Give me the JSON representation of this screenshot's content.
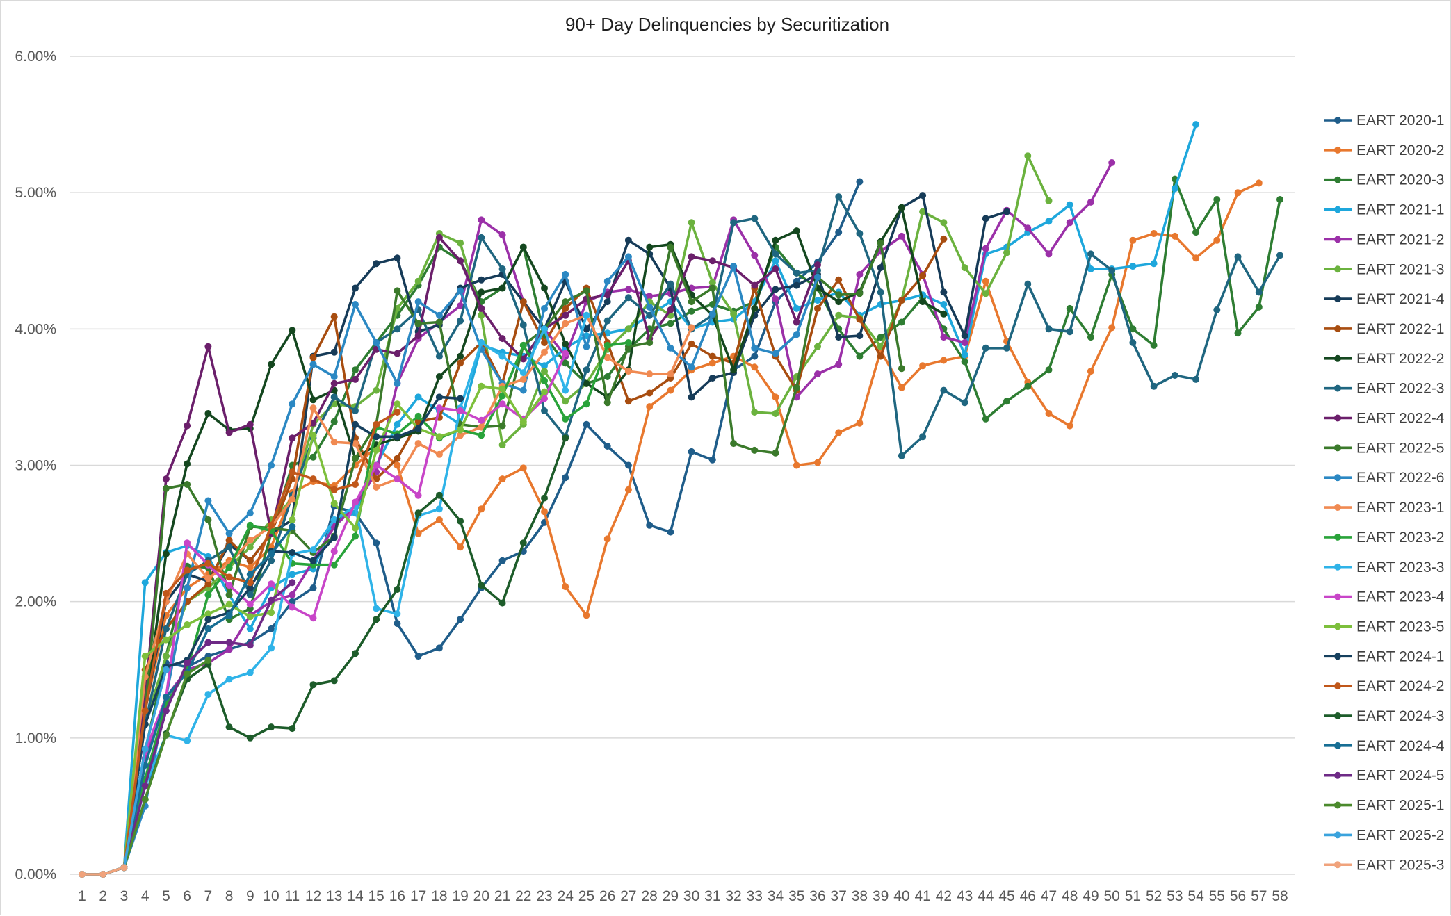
{
  "chart_data": {
    "type": "line",
    "title": "90+ Day Delinquencies by Securitization",
    "xlabel": "",
    "ylabel": "",
    "y_ticks": [
      "0.00%",
      "1.00%",
      "2.00%",
      "3.00%",
      "4.00%",
      "5.00%",
      "6.00%"
    ],
    "ylim": [
      0,
      6
    ],
    "xlim": [
      1,
      58
    ],
    "grid": "horizontal",
    "legend_position": "right",
    "series": [
      {
        "name": "EART 2020-1",
        "color": "#1f5d8a",
        "start": 1,
        "values": [
          0,
          0,
          0.05,
          1.1,
          1.55,
          1.52,
          1.6,
          1.65,
          1.7,
          1.8,
          2,
          2.1,
          2.7,
          2.65,
          2.43,
          1.84,
          1.6,
          1.66,
          1.87,
          2.1,
          2.3,
          2.37,
          2.58,
          2.91,
          3.3,
          3.14,
          3.0,
          2.56,
          2.51,
          3.1,
          3.04,
          3.7,
          3.8,
          4.2,
          4.35,
          4.49,
          4.71,
          5.08
        ]
      },
      {
        "name": "EART 2020-2",
        "color": "#e8782e",
        "start": 1,
        "values": [
          0,
          0,
          0.05,
          1.2,
          1.9,
          2.1,
          2.2,
          2.3,
          2.25,
          2.4,
          2.8,
          2.88,
          2.85,
          3.0,
          3.13,
          3.0,
          2.5,
          2.6,
          2.4,
          2.68,
          2.9,
          2.98,
          2.66,
          2.11,
          1.9,
          2.46,
          2.82,
          3.43,
          3.55,
          3.7,
          3.75,
          3.8,
          3.72,
          3.5,
          3.0,
          3.02,
          3.24,
          3.31,
          3.84,
          3.57,
          3.73,
          3.77,
          3.8,
          4.35,
          3.91,
          3.61,
          3.38,
          3.29,
          3.69,
          4.01,
          4.65,
          4.7,
          4.68,
          4.52,
          4.65,
          5.0,
          5.07
        ]
      },
      {
        "name": "EART 2020-3",
        "color": "#2e7d32",
        "start": 1,
        "values": [
          0,
          0,
          0.05,
          0.9,
          1.6,
          2.26,
          2.25,
          1.87,
          1.95,
          2.5,
          3.0,
          3.06,
          3.32,
          3.7,
          3.9,
          4.1,
          4.32,
          4.6,
          4.5,
          4.2,
          4.3,
          4.6,
          3.95,
          3.75,
          3.6,
          3.65,
          3.85,
          4.0,
          4.04,
          4.13,
          4.18,
          4.13,
          4.2,
          4.6,
          4.41,
          4.3,
          4.0,
          3.8,
          3.94,
          4.05,
          4.23,
          4.0,
          3.76,
          3.34,
          3.47,
          3.58,
          3.7,
          4.15,
          3.94,
          4.4,
          4.0,
          3.88,
          5.1,
          4.71,
          4.95,
          3.97,
          4.16,
          4.95
        ]
      },
      {
        "name": "EART 2021-1",
        "color": "#1ea7dc",
        "start": 1,
        "values": [
          0,
          0,
          0.05,
          2.14,
          2.36,
          2.41,
          2.33,
          2.05,
          1.8,
          2.1,
          2.2,
          2.24,
          2.6,
          2.65,
          3.0,
          3.3,
          3.5,
          3.4,
          3.3,
          3.88,
          3.83,
          3.8,
          3.73,
          3.86,
          3.95,
          3.97,
          4.0,
          4.1,
          4.2,
          4.0,
          4.05,
          4.07,
          4.2,
          4.5,
          4.15,
          4.21,
          4.27,
          4.1,
          4.18,
          4.21,
          4.25,
          4.18,
          3.81,
          4.55,
          4.6,
          4.71,
          4.79,
          4.91,
          4.44,
          4.44,
          4.46,
          4.48,
          5.03,
          5.5
        ]
      },
      {
        "name": "EART 2021-2",
        "color": "#9b30a8",
        "start": 1,
        "values": [
          0,
          0,
          0.05,
          0.85,
          1.3,
          1.5,
          1.55,
          1.65,
          1.9,
          2.0,
          2.05,
          2.3,
          2.55,
          2.7,
          2.95,
          3.6,
          3.93,
          4.05,
          4.17,
          4.8,
          4.69,
          4.2,
          4.0,
          3.8,
          4.2,
          4.27,
          4.29,
          4.24,
          4.26,
          4.3,
          4.31,
          4.8,
          4.54,
          4.22,
          3.5,
          3.67,
          3.74,
          4.4,
          4.57,
          4.68,
          4.4,
          3.94,
          3.9,
          4.59,
          4.87,
          4.74,
          4.55,
          4.78,
          4.93,
          5.22
        ]
      },
      {
        "name": "EART 2021-3",
        "color": "#6bb23e",
        "start": 1,
        "values": [
          0,
          0,
          0.05,
          1.1,
          1.6,
          2.0,
          2.1,
          2.25,
          2.4,
          2.6,
          2.75,
          3.3,
          3.45,
          3.43,
          3.55,
          4.15,
          4.35,
          4.7,
          4.63,
          4.1,
          3.15,
          3.3,
          3.69,
          3.47,
          3.6,
          3.85,
          4.0,
          4.2,
          4.1,
          4.78,
          4.34,
          4.11,
          3.39,
          3.38,
          3.65,
          3.87,
          4.1,
          4.08,
          3.87,
          4.21,
          4.86,
          4.78,
          4.45,
          4.26,
          4.56,
          5.27,
          4.94
        ]
      },
      {
        "name": "EART 2021-4",
        "color": "#163b58",
        "start": 1,
        "values": [
          0,
          0,
          0.05,
          1.2,
          2.0,
          2.2,
          2.15,
          2.42,
          2.3,
          2.5,
          2.6,
          3.8,
          3.83,
          4.3,
          4.48,
          4.52,
          3.98,
          4.03,
          4.3,
          4.36,
          4.4,
          4.2,
          4.0,
          4.35,
          4.0,
          4.2,
          4.65,
          4.55,
          4.3,
          3.5,
          3.64,
          3.68,
          4.1,
          4.29,
          4.32,
          4.4,
          3.94,
          3.95,
          4.45,
          4.89,
          4.98,
          4.27,
          3.95,
          4.81,
          4.86
        ]
      },
      {
        "name": "EART 2022-1",
        "color": "#a84d10",
        "start": 1,
        "values": [
          0,
          0,
          0.05,
          1.5,
          1.8,
          2.0,
          2.13,
          2.45,
          2.3,
          2.5,
          2.9,
          3.79,
          4.09,
          3.2,
          2.9,
          3.05,
          3.32,
          3.35,
          3.75,
          3.9,
          3.6,
          4.2,
          3.9,
          4.15,
          4.3,
          3.9,
          3.47,
          3.53,
          3.64,
          3.89,
          3.8,
          3.75,
          4.3,
          3.8,
          3.55,
          4.15,
          4.36,
          4.07,
          3.8,
          4.21,
          4.39,
          4.66
        ]
      },
      {
        "name": "EART 2022-2",
        "color": "#14471f",
        "start": 1,
        "values": [
          0,
          0,
          0.05,
          1.2,
          2.35,
          3.01,
          3.38,
          3.26,
          3.27,
          3.74,
          3.99,
          3.48,
          3.55,
          3.05,
          3.15,
          3.2,
          3.25,
          3.65,
          3.8,
          4.27,
          4.3,
          4.6,
          4.3,
          3.89,
          3.6,
          3.5,
          3.7,
          4.6,
          4.62,
          4.25,
          4.1,
          3.7,
          4.15,
          4.65,
          4.72,
          4.3,
          4.2,
          4.27,
          4.64,
          4.89,
          4.2,
          4.11
        ]
      },
      {
        "name": "EART 2022-3",
        "color": "#1f6680",
        "start": 1,
        "values": [
          0,
          0,
          0.05,
          1.1,
          1.8,
          2.2,
          2.3,
          2.4,
          2.05,
          2.3,
          2.78,
          3.2,
          3.5,
          3.4,
          3.9,
          4.0,
          4.14,
          3.8,
          4.06,
          4.67,
          4.44,
          4.03,
          3.4,
          3.21,
          3.7,
          4.06,
          4.23,
          4.1,
          4.33,
          4.0,
          4.1,
          4.78,
          4.81,
          4.55,
          4.41,
          4.43,
          4.97,
          4.7,
          4.27,
          3.07,
          3.21,
          3.55,
          3.46,
          3.86,
          3.86,
          4.33,
          4.0,
          3.98,
          4.55,
          4.43,
          3.9,
          3.58,
          3.66,
          3.63,
          4.14,
          4.53,
          4.27,
          4.54
        ]
      },
      {
        "name": "EART 2022-4",
        "color": "#6b1f6b",
        "start": 1,
        "values": [
          0,
          0,
          0.05,
          1.3,
          2.9,
          3.29,
          3.87,
          3.24,
          3.3,
          2.5,
          3.2,
          3.31,
          3.6,
          3.63,
          3.85,
          3.82,
          3.95,
          4.67,
          4.5,
          4.15,
          3.93,
          3.78,
          4.0,
          4.1,
          4.22,
          4.25,
          4.5,
          3.93,
          4.14,
          4.53,
          4.5,
          4.45,
          4.32,
          4.44,
          4.05,
          4.47
        ]
      },
      {
        "name": "EART 2022-5",
        "color": "#3b7a2b",
        "start": 1,
        "values": [
          0,
          0,
          0.05,
          1.2,
          2.83,
          2.86,
          2.6,
          2.05,
          2.55,
          2.54,
          2.52,
          2.36,
          2.48,
          3.05,
          3.3,
          4.28,
          4.04,
          4.05,
          3.3,
          3.28,
          3.29,
          3.88,
          4.0,
          4.2,
          4.28,
          3.46,
          3.87,
          3.9,
          4.6,
          4.2,
          4.3,
          3.16,
          3.11,
          3.09,
          3.57,
          4.38,
          4.25,
          4.26,
          4.63,
          3.71
        ]
      },
      {
        "name": "EART 2022-6",
        "color": "#2b88c3",
        "start": 1,
        "values": [
          0,
          0,
          0.05,
          0.5,
          1.3,
          2.1,
          2.74,
          2.5,
          2.65,
          3.0,
          3.45,
          3.74,
          3.65,
          4.18,
          3.9,
          3.6,
          4.2,
          4.1,
          4.28,
          3.85,
          3.6,
          3.55,
          4.15,
          4.4,
          3.87,
          4.35,
          4.53,
          4.16,
          3.86,
          3.72,
          4.11,
          4.46,
          3.86,
          3.82,
          3.96,
          4.38
        ]
      },
      {
        "name": "EART 2023-1",
        "color": "#f08a52",
        "start": 1,
        "values": [
          0,
          0,
          0.05,
          1.45,
          2.0,
          2.35,
          2.17,
          2.28,
          2.45,
          2.55,
          2.75,
          3.42,
          3.17,
          3.16,
          2.84,
          2.9,
          3.16,
          3.08,
          3.22,
          3.28,
          3.58,
          3.63,
          3.83,
          4.04,
          4.1,
          3.79,
          3.69,
          3.67,
          3.67,
          4.01
        ]
      },
      {
        "name": "EART 2023-2",
        "color": "#29a33a",
        "start": 1,
        "values": [
          0,
          0,
          0.05,
          0.7,
          1.25,
          1.5,
          2.05,
          2.25,
          2.56,
          2.52,
          2.28,
          2.27,
          2.27,
          2.48,
          3.28,
          3.23,
          3.36,
          3.2,
          3.26,
          3.22,
          3.51,
          3.88,
          3.62,
          3.34,
          3.45,
          3.88,
          3.9
        ]
      },
      {
        "name": "EART 2023-3",
        "color": "#2fb3e8",
        "start": 1,
        "values": [
          0,
          0,
          0.05,
          0.65,
          1.02,
          0.98,
          1.32,
          1.43,
          1.48,
          1.66,
          2.35,
          2.38,
          2.6,
          2.7,
          1.95,
          1.91,
          2.63,
          2.68,
          3.42,
          3.9,
          3.8,
          3.68,
          4.0,
          3.55,
          4.1
        ]
      },
      {
        "name": "EART 2023-4",
        "color": "#c845c8",
        "start": 1,
        "values": [
          0,
          0,
          0.05,
          0.9,
          1.3,
          2.43,
          2.27,
          2.12,
          1.98,
          2.13,
          1.96,
          1.88,
          2.37,
          2.73,
          3.0,
          2.9,
          2.78,
          3.42,
          3.4,
          3.33,
          3.45,
          3.34,
          3.49,
          3.82
        ]
      },
      {
        "name": "EART 2023-5",
        "color": "#7dbf3c",
        "start": 1,
        "values": [
          0,
          0,
          0.05,
          1.6,
          1.72,
          1.83,
          1.91,
          1.98,
          1.89,
          1.92,
          2.6,
          3.22,
          2.72,
          2.54,
          3.11,
          3.45,
          3.27,
          3.21,
          3.26,
          3.58,
          3.56,
          3.32,
          3.54
        ]
      },
      {
        "name": "EART 2024-1",
        "color": "#16405e",
        "start": 1,
        "values": [
          0,
          0,
          0.05,
          1.1,
          1.52,
          1.57,
          1.87,
          1.92,
          2.1,
          2.37,
          2.36,
          2.3,
          2.47,
          3.3,
          3.21,
          3.21,
          3.27,
          3.5,
          3.49
        ]
      },
      {
        "name": "EART 2024-2",
        "color": "#c0571a",
        "start": 1,
        "values": [
          0,
          0,
          0.05,
          1.2,
          2.06,
          2.23,
          2.28,
          2.18,
          2.14,
          2.56,
          2.95,
          2.9,
          2.82,
          2.86,
          3.3,
          3.39
        ]
      },
      {
        "name": "EART 2024-3",
        "color": "#1d5c2a",
        "start": 1,
        "values": [
          0,
          0,
          0.05,
          0.55,
          1.03,
          1.43,
          1.54,
          1.08,
          1.0,
          1.08,
          1.07,
          1.39,
          1.42,
          1.62,
          1.87,
          2.09,
          2.65,
          2.78,
          2.59,
          2.12,
          1.99,
          2.43,
          2.76,
          3.2
        ]
      },
      {
        "name": "EART 2024-4",
        "color": "#176e94",
        "start": 1,
        "values": [
          0,
          0,
          0.05,
          0.8,
          1.3,
          1.48,
          1.8,
          1.9,
          2.2,
          2.35,
          2.55
        ]
      },
      {
        "name": "EART 2024-5",
        "color": "#6e2a86",
        "start": 1,
        "values": [
          0,
          0,
          0.05,
          0.65,
          1.2,
          1.55,
          1.7,
          1.7,
          1.68,
          2.01,
          2.14
        ]
      },
      {
        "name": "EART 2025-1",
        "color": "#4b8a2d",
        "start": 1,
        "values": [
          0,
          0,
          0.05,
          0.55,
          1.02,
          1.47,
          1.57
        ]
      },
      {
        "name": "EART 2025-2",
        "color": "#3aa3dd",
        "start": 1,
        "values": [
          0,
          0,
          0.05,
          0.92,
          1.5
        ]
      },
      {
        "name": "EART 2025-3",
        "color": "#f0a37c",
        "start": 1,
        "values": [
          0,
          0,
          0.05
        ]
      }
    ]
  }
}
